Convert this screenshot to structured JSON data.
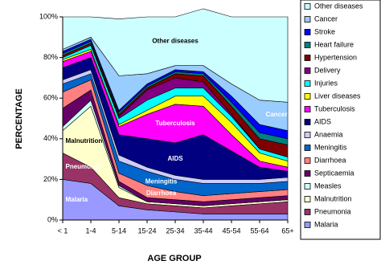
{
  "chart_data": {
    "type": "stacked_area",
    "x_label": "AGE GROUP",
    "y_label": "PERCENTAGE",
    "categories": [
      "< 1",
      "1-4",
      "5-14",
      "15-24",
      "25-34",
      "35-44",
      "45-54",
      "55-64",
      "65+"
    ],
    "ylim": [
      0,
      100
    ],
    "yticks": [
      {
        "value": 0,
        "label": "0%"
      },
      {
        "value": 20,
        "label": "20%"
      },
      {
        "value": 40,
        "label": "40%"
      },
      {
        "value": 60,
        "label": "60%"
      },
      {
        "value": 80,
        "label": "80%"
      },
      {
        "value": 100,
        "label": "100%"
      }
    ],
    "legend": "right",
    "series": [
      {
        "name": "Malaria",
        "color": "#9999ff",
        "values": [
          20,
          18,
          7,
          5,
          4,
          3,
          3,
          3,
          3
        ]
      },
      {
        "name": "Pneumonia",
        "color": "#993366",
        "values": [
          13,
          8,
          4,
          3,
          3,
          3,
          4,
          5,
          6
        ]
      },
      {
        "name": "Malnutrition",
        "color": "#ffffcc",
        "values": [
          11,
          30,
          5,
          1,
          1,
          1,
          1,
          1,
          1
        ]
      },
      {
        "name": "Measles",
        "color": "#ccffff",
        "values": [
          2,
          3,
          1,
          0,
          0,
          0,
          0,
          0,
          0
        ]
      },
      {
        "name": "Septicaemia",
        "color": "#660066",
        "values": [
          9,
          5,
          2,
          2,
          2,
          2,
          2,
          2,
          2
        ]
      },
      {
        "name": "Diarrhoea",
        "color": "#ff8080",
        "values": [
          8,
          5,
          4,
          6,
          4,
          3,
          3,
          3,
          3
        ]
      },
      {
        "name": "Meningitis",
        "color": "#0066cc",
        "values": [
          4,
          3,
          6,
          7,
          6,
          6,
          5,
          4,
          4
        ]
      },
      {
        "name": "Anaemia",
        "color": "#ccccff",
        "values": [
          2,
          2,
          3,
          2,
          2,
          2,
          2,
          2,
          2
        ]
      },
      {
        "name": "AIDS",
        "color": "#000080",
        "values": [
          6,
          6,
          10,
          14,
          16,
          22,
          14,
          6,
          3
        ]
      },
      {
        "name": "Tuberculosis",
        "color": "#ff00ff",
        "values": [
          3,
          3,
          4,
          12,
          19,
          14,
          8,
          3,
          2
        ]
      },
      {
        "name": "Liver diseases",
        "color": "#ffff00",
        "values": [
          1,
          1,
          1,
          2,
          4,
          5,
          6,
          4,
          3
        ]
      },
      {
        "name": "Injuries",
        "color": "#00ffff",
        "values": [
          1,
          2,
          3,
          5,
          4,
          4,
          3,
          2,
          2
        ]
      },
      {
        "name": "Delivery",
        "color": "#800080",
        "values": [
          0,
          0,
          1,
          5,
          5,
          3,
          1,
          0,
          0
        ]
      },
      {
        "name": "Hypertension",
        "color": "#800000",
        "values": [
          1,
          1,
          1,
          1,
          2,
          3,
          4,
          5,
          6
        ]
      },
      {
        "name": "Heart failure",
        "color": "#008080",
        "values": [
          1,
          1,
          1,
          1,
          1,
          1,
          2,
          3,
          3
        ]
      },
      {
        "name": "Stroke",
        "color": "#0000ff",
        "values": [
          1,
          1,
          1,
          1,
          1,
          1,
          3,
          4,
          4
        ]
      },
      {
        "name": "Cancer",
        "color": "#99ccff",
        "values": [
          1,
          1,
          17,
          5,
          2,
          3,
          6,
          12,
          14
        ]
      },
      {
        "name": "Other diseases",
        "color": "#ccffff",
        "values": [
          16,
          10,
          28,
          28,
          24,
          28,
          33,
          41,
          42
        ]
      }
    ]
  }
}
